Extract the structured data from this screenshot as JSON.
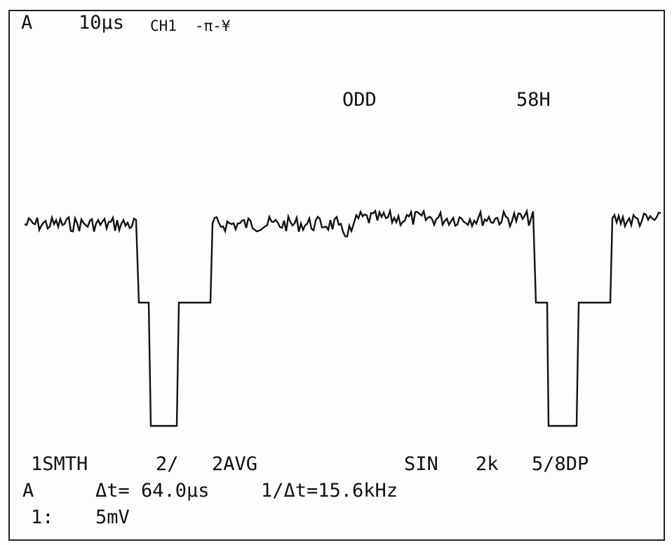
{
  "header": {
    "mode": "A",
    "timebase": "10µs",
    "channel": "CH1",
    "trigger": "-π-¥"
  },
  "info": {
    "field": "ODD",
    "line": "58H"
  },
  "status": {
    "smooth": "1SMTH",
    "ratio": "2/",
    "average": "2AVG",
    "interp": "SIN",
    "record": "2k",
    "points": "5/8DP"
  },
  "cursor": {
    "mode": "A",
    "delta_t": "Δt= 64.0µs",
    "inv_delta_t": "1/Δt=15.6kHz",
    "channel": "1:",
    "volts_div": "5mV"
  }
}
